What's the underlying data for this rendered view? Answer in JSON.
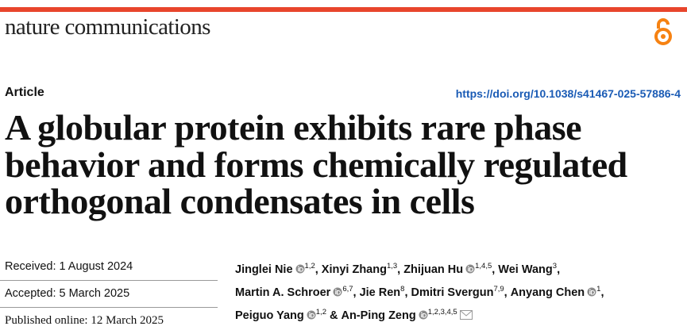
{
  "header": {
    "journal": "nature communications",
    "article_type": "Article",
    "doi": "https://doi.org/10.1038/s41467-025-57886-4"
  },
  "title_lines": [
    "A globular protein exhibits rare phase",
    "behavior and forms chemically regulated",
    "orthogonal condensates in cells"
  ],
  "dates": {
    "received": "Received: 1 August 2024",
    "accepted": "Accepted: 5 March 2025",
    "published": "Published online: 12 March 2025"
  },
  "author_lines": [
    [
      {
        "name": "Jinglei Nie",
        "orcid": true,
        "affiliations": "1,2",
        "suffix": ","
      },
      {
        "name": "Xinyi Zhang",
        "orcid": false,
        "affiliations": "1,3",
        "suffix": ","
      },
      {
        "name": "Zhijuan Hu",
        "orcid": true,
        "affiliations": "1,4,5",
        "suffix": ","
      },
      {
        "name": "Wei Wang",
        "orcid": false,
        "affiliations": "3",
        "suffix": ","
      }
    ],
    [
      {
        "name": "Martin A. Schroer",
        "orcid": true,
        "affiliations": "6,7",
        "suffix": ","
      },
      {
        "name": "Jie Ren",
        "orcid": false,
        "affiliations": "8",
        "suffix": ","
      },
      {
        "name": "Dmitri Svergun",
        "orcid": false,
        "affiliations": "7,9",
        "suffix": ","
      },
      {
        "name": "Anyang Chen",
        "orcid": true,
        "affiliations": "1",
        "suffix": ","
      }
    ],
    [
      {
        "name": "Peiguo Yang",
        "orcid": true,
        "affiliations": "1,2",
        "suffix": "&"
      },
      {
        "name": "An-Ping Zeng",
        "orcid": true,
        "affiliations": "1,2,3,4,5",
        "corresponding": true
      }
    ]
  ]
}
